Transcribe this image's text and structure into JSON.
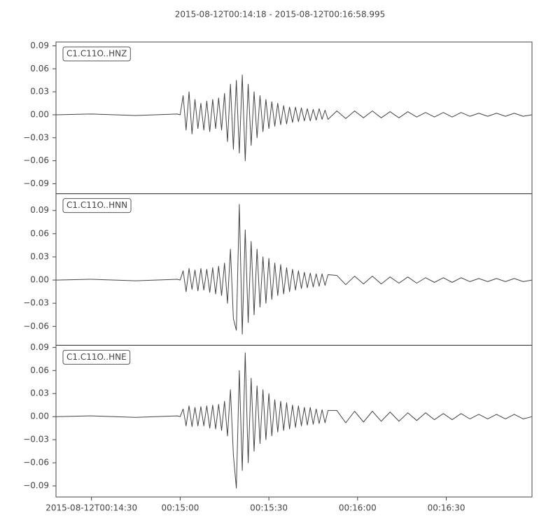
{
  "chart_data": {
    "type": "line",
    "title": "2015-08-12T00:14:18  -  2015-08-12T00:16:58.995",
    "xlim": [
      "00:14:18",
      "00:16:58.995"
    ],
    "xticks": [
      {
        "value": "00:14:30",
        "label": "2015-08-12T00:14:30"
      },
      "00:15:00",
      "00:15:30",
      "00:16:00",
      "00:16:30"
    ],
    "x": [
      "00:14:18",
      "00:14:30",
      "00:14:45",
      "00:14:59",
      "00:15:00",
      "00:15:01",
      "00:15:02",
      "00:15:03",
      "00:15:04",
      "00:15:05",
      "00:15:06",
      "00:15:07",
      "00:15:08",
      "00:15:09",
      "00:15:10",
      "00:15:11",
      "00:15:12",
      "00:15:13",
      "00:15:14",
      "00:15:15",
      "00:15:16",
      "00:15:17",
      "00:15:18",
      "00:15:19",
      "00:15:20",
      "00:15:21",
      "00:15:22",
      "00:15:23",
      "00:15:24",
      "00:15:25",
      "00:15:26",
      "00:15:27",
      "00:15:28",
      "00:15:29",
      "00:15:30",
      "00:15:31",
      "00:15:32",
      "00:15:33",
      "00:15:34",
      "00:15:35",
      "00:15:36",
      "00:15:37",
      "00:15:38",
      "00:15:39",
      "00:15:40",
      "00:15:41",
      "00:15:42",
      "00:15:43",
      "00:15:44",
      "00:15:45",
      "00:15:46",
      "00:15:47",
      "00:15:48",
      "00:15:49",
      "00:15:50",
      "00:15:53",
      "00:15:56",
      "00:15:59",
      "00:16:02",
      "00:16:05",
      "00:16:08",
      "00:16:11",
      "00:16:14",
      "00:16:17",
      "00:16:20",
      "00:16:23",
      "00:16:26",
      "00:16:29",
      "00:16:32",
      "00:16:35",
      "00:16:38",
      "00:16:41",
      "00:16:44",
      "00:16:47",
      "00:16:50",
      "00:16:53",
      "00:16:56",
      "00:16:58.995"
    ],
    "series": [
      {
        "name": "C1.C11O..HNZ",
        "color": "#444444",
        "ylim": [
          -0.103,
          0.095
        ],
        "yticks": [
          {
            "value": -0.09,
            "label": "−0.09"
          },
          {
            "value": -0.06,
            "label": "−0.06"
          },
          {
            "value": -0.03,
            "label": "−0.03"
          },
          {
            "value": 0,
            "label": "0.00"
          },
          0.03,
          0.06,
          0.09
        ],
        "values": [
          0,
          0.001,
          -0.001,
          0.001,
          0,
          0.025,
          -0.02,
          0.03,
          -0.025,
          0.02,
          -0.018,
          0.015,
          -0.02,
          0.018,
          -0.022,
          0.02,
          -0.018,
          0.022,
          -0.02,
          0.028,
          -0.035,
          0.04,
          -0.045,
          0.045,
          -0.05,
          0.052,
          -0.06,
          0.04,
          -0.04,
          0.03,
          -0.03,
          0.025,
          -0.022,
          0.02,
          -0.018,
          0.017,
          -0.015,
          0.015,
          -0.013,
          0.012,
          -0.012,
          0.01,
          -0.01,
          0.01,
          -0.009,
          0.009,
          -0.008,
          0.008,
          -0.008,
          0.007,
          -0.007,
          0.008,
          -0.006,
          0.006,
          -0.006,
          0.005,
          -0.005,
          0.005,
          -0.004,
          0.005,
          -0.004,
          0.004,
          -0.004,
          0.004,
          -0.003,
          0.003,
          -0.003,
          0.003,
          -0.003,
          0.003,
          -0.002,
          0.002,
          -0.002,
          0.002,
          -0.002,
          0.002,
          -0.002,
          0
        ]
      },
      {
        "name": "C1.C11O..HNN",
        "color": "#444444",
        "ylim": [
          -0.0845,
          0.1118
        ],
        "yticks": [
          {
            "value": -0.06,
            "label": "−0.06"
          },
          {
            "value": -0.03,
            "label": "−0.03"
          },
          {
            "value": 0,
            "label": "0.00"
          },
          0.03,
          0.06,
          0.09
        ],
        "values": [
          0,
          0.001,
          -0.001,
          0.001,
          0,
          0.012,
          -0.015,
          0.015,
          -0.012,
          0.013,
          -0.014,
          0.015,
          -0.013,
          0.014,
          -0.016,
          0.016,
          -0.018,
          0.018,
          -0.02,
          0.022,
          -0.03,
          0.04,
          -0.05,
          -0.065,
          0.098,
          -0.07,
          0.065,
          -0.055,
          0.05,
          -0.045,
          0.04,
          -0.035,
          0.03,
          -0.03,
          0.028,
          -0.025,
          0.022,
          -0.02,
          0.02,
          -0.018,
          0.016,
          -0.015,
          0.014,
          -0.013,
          0.012,
          -0.011,
          0.01,
          -0.01,
          0.009,
          -0.009,
          0.008,
          -0.008,
          0.008,
          -0.007,
          0.007,
          0.006,
          -0.006,
          0.005,
          -0.005,
          0.005,
          -0.005,
          0.004,
          -0.004,
          0.004,
          -0.004,
          0.003,
          -0.003,
          0.003,
          -0.003,
          0.003,
          -0.002,
          0.002,
          -0.002,
          0.002,
          -0.002,
          0.002,
          -0.002,
          0
        ]
      },
      {
        "name": "C1.C11O..HNE",
        "color": "#444444",
        "ylim": [
          -0.1045,
          0.0927
        ],
        "yticks": [
          {
            "value": -0.09,
            "label": "−0.09"
          },
          {
            "value": -0.06,
            "label": "−0.06"
          },
          {
            "value": -0.03,
            "label": "−0.03"
          },
          {
            "value": 0,
            "label": "0.00"
          },
          0.03,
          0.06,
          0.09
        ],
        "values": [
          0,
          0.001,
          -0.001,
          0.001,
          0,
          0.01,
          -0.012,
          0.014,
          -0.013,
          0.012,
          -0.012,
          0.013,
          -0.012,
          0.014,
          -0.015,
          0.015,
          -0.016,
          0.016,
          -0.018,
          0.02,
          -0.025,
          0.035,
          -0.05,
          -0.093,
          0.06,
          -0.07,
          0.083,
          -0.06,
          0.05,
          -0.045,
          0.04,
          -0.035,
          0.035,
          -0.03,
          0.03,
          -0.025,
          0.022,
          -0.02,
          0.02,
          -0.018,
          0.018,
          -0.016,
          0.015,
          -0.014,
          0.014,
          -0.012,
          0.012,
          -0.011,
          0.012,
          -0.01,
          0.01,
          -0.009,
          0.009,
          -0.008,
          0.008,
          0.008,
          -0.008,
          0.007,
          -0.007,
          0.007,
          -0.006,
          0.006,
          -0.006,
          0.005,
          -0.005,
          0.005,
          -0.004,
          0.004,
          -0.004,
          0.004,
          -0.003,
          0.003,
          -0.003,
          0.003,
          -0.003,
          0.003,
          -0.003,
          0
        ]
      }
    ]
  }
}
